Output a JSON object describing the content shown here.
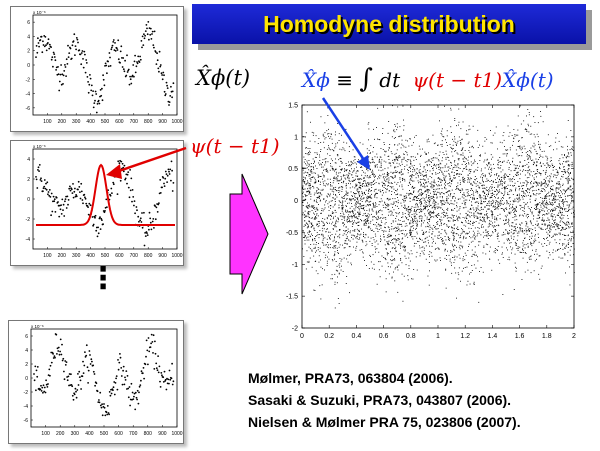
{
  "slide": {
    "title": "Homodyne distribution",
    "trace_label": "X̂ϕ(t)",
    "mode_label": "ψ(t − t1)",
    "equation": {
      "lhs": "X̂ϕ",
      "equiv": "≡",
      "integral": "∫",
      "dt": "dt",
      "psi": "ψ(t − t1)",
      "rhs": "X̂ϕ(t)"
    },
    "vertical_ellipsis": "⋮",
    "references": [
      "Mølmer, PRA73, 063804 (2006).",
      "Sasaki  & Suzuki, PRA73, 043807 (2006).",
      "Nielsen & Mølmer PRA 75, 023806 (2007)."
    ],
    "colors": {
      "title_bg": "#1522c4",
      "title_text": "#ffe500",
      "arrow": "#ff33ff",
      "mode": "#e00000",
      "pointer": "#1a40e6"
    }
  },
  "trace_plots": [
    {
      "id": "top",
      "exponent": "x 10⁻⁶",
      "x_ticks": [
        "100",
        "200",
        "300",
        "400",
        "500",
        "600",
        "700",
        "800",
        "900",
        "1000"
      ],
      "y_ticks": [
        "6",
        "4",
        "2",
        "0",
        "-2",
        "-4",
        "-6"
      ]
    },
    {
      "id": "middle",
      "exponent": "x 10⁻⁶",
      "x_ticks": [
        "100",
        "200",
        "300",
        "400",
        "500",
        "600",
        "700",
        "800",
        "900",
        "1000"
      ],
      "y_ticks": [
        "4",
        "2",
        "0",
        "-2",
        "-4"
      ]
    },
    {
      "id": "bottom",
      "exponent": "x 10⁻⁶",
      "x_ticks": [
        "100",
        "200",
        "300",
        "400",
        "500",
        "600",
        "700",
        "800",
        "900",
        "1000"
      ],
      "y_ticks": [
        "6",
        "4",
        "2",
        "0",
        "-2",
        "-4",
        "-6"
      ]
    }
  ],
  "chart_data": {
    "type": "scatter",
    "title": "",
    "xlabel": "",
    "ylabel": "",
    "xlim": [
      0,
      2
    ],
    "ylim": [
      -2,
      1.5
    ],
    "x_ticks": [
      "0",
      "0.2",
      "0.4",
      "0.6",
      "0.8",
      "1",
      "1.2",
      "1.4",
      "1.6",
      "1.8",
      "2"
    ],
    "y_ticks": [
      "1.5",
      "1",
      "0.5",
      "0",
      "-0.5",
      "-1",
      "-1.5",
      "-2"
    ],
    "x_tick_values": [
      0,
      0.2,
      0.4,
      0.6,
      0.8,
      1,
      1.2,
      1.4,
      1.6,
      1.8,
      2
    ],
    "y_tick_values": [
      1.5,
      1,
      0.5,
      0,
      -0.5,
      -1,
      -1.5,
      -2
    ],
    "grid": false,
    "point_color": "#000000",
    "approx_points": 5000,
    "pattern": "two interleaved sinusoidal bands, amplitude about 0.5, period about 0.95 in x, Gaussian spread about 0.4"
  }
}
